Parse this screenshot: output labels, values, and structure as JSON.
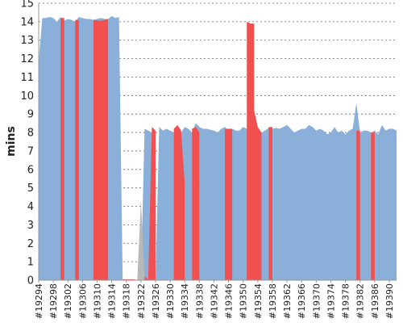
{
  "chart_data": {
    "type": "area",
    "ylabel": "mins",
    "ylim": [
      0,
      15
    ],
    "yticks": [
      0,
      1,
      2,
      3,
      4,
      5,
      6,
      7,
      8,
      9,
      10,
      11,
      12,
      13,
      14,
      15
    ],
    "grid": true,
    "x_range": [
      19294,
      19392
    ],
    "x_tick_labels": [
      "#19294",
      "#19298",
      "#19302",
      "#19306",
      "#19310",
      "#19314",
      "#19318",
      "#19322",
      "#19326",
      "#19330",
      "#19334",
      "#19338",
      "#19342",
      "#19346",
      "#19350",
      "#19354",
      "#19358",
      "#19362",
      "#19366",
      "#19370",
      "#19374",
      "#19378",
      "#19382",
      "#19386",
      "#19390"
    ],
    "series": [
      {
        "role": "blue-area",
        "color": "#8aafd9",
        "points": [
          [
            19294,
            11.9
          ],
          [
            19295,
            14.2
          ],
          [
            19296,
            14.2
          ],
          [
            19297,
            14.25
          ],
          [
            19298,
            14.2
          ],
          [
            19299,
            14.0
          ],
          [
            19300,
            14.25
          ],
          [
            19301,
            14.05
          ],
          [
            19302,
            14.15
          ],
          [
            19303,
            14.1
          ],
          [
            19304,
            14.0
          ],
          [
            19305,
            14.25
          ],
          [
            19306,
            14.2
          ],
          [
            19307,
            14.15
          ],
          [
            19308,
            14.15
          ],
          [
            19309,
            14.1
          ],
          [
            19310,
            14.15
          ],
          [
            19311,
            14.2
          ],
          [
            19312,
            14.15
          ],
          [
            19313,
            14.15
          ],
          [
            19314,
            14.3
          ],
          [
            19315,
            14.2
          ],
          [
            19316,
            14.25
          ],
          [
            19317,
            0.0
          ],
          [
            19318,
            0.0
          ],
          [
            19319,
            0.0
          ],
          [
            19320,
            0.0
          ],
          [
            19321,
            0.0
          ],
          [
            19322,
            0.0
          ],
          [
            19323,
            8.2
          ],
          [
            19324,
            8.1
          ],
          [
            19325,
            8.0
          ],
          [
            19326,
            0.0
          ],
          [
            19327,
            8.3
          ],
          [
            19328,
            8.1
          ],
          [
            19329,
            8.2
          ],
          [
            19330,
            8.1
          ],
          [
            19331,
            8.0
          ],
          [
            19332,
            0.0
          ],
          [
            19333,
            8.0
          ],
          [
            19334,
            8.3
          ],
          [
            19335,
            8.2
          ],
          [
            19336,
            8.0
          ],
          [
            19337,
            8.5
          ],
          [
            19338,
            8.3
          ],
          [
            19339,
            8.2
          ],
          [
            19340,
            8.2
          ],
          [
            19341,
            8.15
          ],
          [
            19342,
            8.1
          ],
          [
            19343,
            8.0
          ],
          [
            19344,
            8.2
          ],
          [
            19345,
            8.3
          ],
          [
            19346,
            8.1
          ],
          [
            19347,
            8.2
          ],
          [
            19348,
            8.1
          ],
          [
            19349,
            8.1
          ],
          [
            19350,
            8.3
          ],
          [
            19351,
            8.2
          ],
          [
            19352,
            8.2
          ],
          [
            19353,
            8.1
          ],
          [
            19354,
            8.1
          ],
          [
            19355,
            8.0
          ],
          [
            19356,
            8.1
          ],
          [
            19357,
            8.25
          ],
          [
            19358,
            8.2
          ],
          [
            19359,
            8.25
          ],
          [
            19360,
            8.2
          ],
          [
            19361,
            8.3
          ],
          [
            19362,
            8.4
          ],
          [
            19363,
            8.2
          ],
          [
            19364,
            8.0
          ],
          [
            19365,
            8.1
          ],
          [
            19366,
            8.2
          ],
          [
            19367,
            8.2
          ],
          [
            19368,
            8.4
          ],
          [
            19369,
            8.3
          ],
          [
            19370,
            8.1
          ],
          [
            19371,
            8.2
          ],
          [
            19372,
            8.1
          ],
          [
            19373,
            7.9
          ],
          [
            19374,
            8.0
          ],
          [
            19375,
            8.3
          ],
          [
            19376,
            8.0
          ],
          [
            19377,
            8.1
          ],
          [
            19378,
            7.9
          ],
          [
            19379,
            8.1
          ],
          [
            19380,
            8.2
          ],
          [
            19381,
            9.6
          ],
          [
            19382,
            8.0
          ],
          [
            19383,
            8.1
          ],
          [
            19384,
            8.1
          ],
          [
            19385,
            8.0
          ],
          [
            19386,
            8.1
          ],
          [
            19387,
            7.9
          ],
          [
            19388,
            8.4
          ],
          [
            19389,
            8.1
          ],
          [
            19390,
            8.2
          ],
          [
            19391,
            8.2
          ],
          [
            19392,
            8.1
          ]
        ]
      },
      {
        "role": "gray-area",
        "color": "#b8b8b8",
        "points": [
          [
            19321,
            0.0
          ],
          [
            19322,
            4.3
          ],
          [
            19323,
            0.0
          ]
        ]
      },
      {
        "role": "red-area",
        "color": "#f05050",
        "points": [
          [
            19300,
            0.0
          ],
          [
            19300,
            14.2
          ],
          [
            19301,
            14.2
          ],
          [
            19301,
            0.0
          ],
          [
            19304,
            0.0
          ],
          [
            19304,
            14.1
          ],
          [
            19305,
            14.1
          ],
          [
            19305,
            0.0
          ],
          [
            19309,
            0.0
          ],
          [
            19309,
            14.1
          ],
          [
            19311,
            14.05
          ],
          [
            19312,
            14.1
          ],
          [
            19313,
            14.15
          ],
          [
            19313,
            0.0
          ],
          [
            19317,
            0.0
          ],
          [
            19317,
            0.05
          ],
          [
            19320,
            0.05
          ],
          [
            19321,
            0.0
          ],
          [
            19323,
            0.0
          ],
          [
            19323,
            0.2
          ],
          [
            19324,
            0.05
          ],
          [
            19325,
            8.3
          ],
          [
            19326,
            8.1
          ],
          [
            19326,
            0.0
          ],
          [
            19331,
            0.0
          ],
          [
            19331,
            8.2
          ],
          [
            19332,
            8.4
          ],
          [
            19333,
            8.1
          ],
          [
            19334,
            5.2
          ],
          [
            19334,
            0.0
          ],
          [
            19336,
            0.0
          ],
          [
            19336,
            8.2
          ],
          [
            19337,
            8.3
          ],
          [
            19338,
            8.0
          ],
          [
            19338,
            0.0
          ],
          [
            19345,
            0.0
          ],
          [
            19345,
            8.2
          ],
          [
            19347,
            8.2
          ],
          [
            19347,
            0.0
          ],
          [
            19351,
            0.0
          ],
          [
            19351,
            14.0
          ],
          [
            19352,
            13.9
          ],
          [
            19353,
            13.9
          ],
          [
            19353,
            9.2
          ],
          [
            19354,
            8.3
          ],
          [
            19355,
            8.0
          ],
          [
            19355,
            0.0
          ],
          [
            19357,
            0.0
          ],
          [
            19357,
            8.3
          ],
          [
            19358,
            8.3
          ],
          [
            19358,
            0.0
          ],
          [
            19381,
            0.0
          ],
          [
            19381,
            8.1
          ],
          [
            19382,
            8.1
          ],
          [
            19382,
            0.0
          ],
          [
            19385,
            0.0
          ],
          [
            19385,
            8.0
          ],
          [
            19386,
            8.0
          ],
          [
            19386,
            0.0
          ]
        ]
      }
    ]
  }
}
